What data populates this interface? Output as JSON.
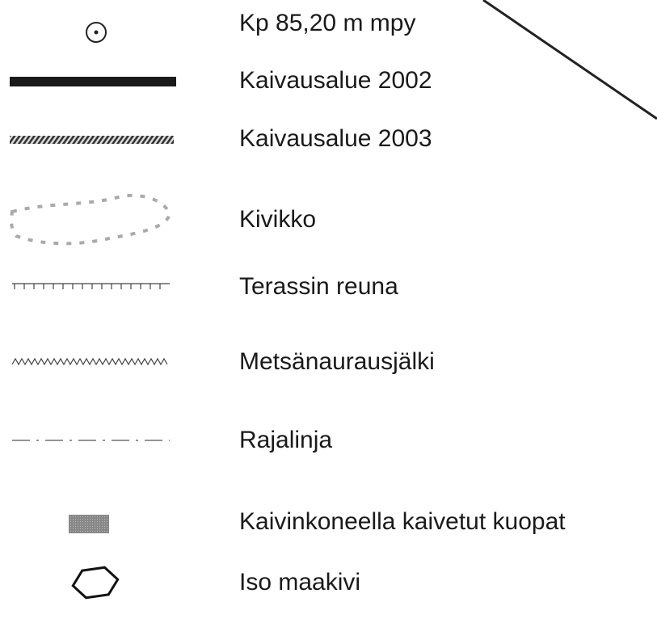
{
  "legend": {
    "items": [
      {
        "label": "Kp 85,20 m mpy"
      },
      {
        "label": "Kaivausalue 2002"
      },
      {
        "label": "Kaivausalue 2003"
      },
      {
        "label": "Kivikko"
      },
      {
        "label": "Terassin reuna"
      },
      {
        "label": "Metsänaurausjälki"
      },
      {
        "label": "Rajalinja"
      },
      {
        "label": "Kaivinkoneella kaivetut kuopat"
      },
      {
        "label": "Iso maakivi"
      }
    ]
  }
}
